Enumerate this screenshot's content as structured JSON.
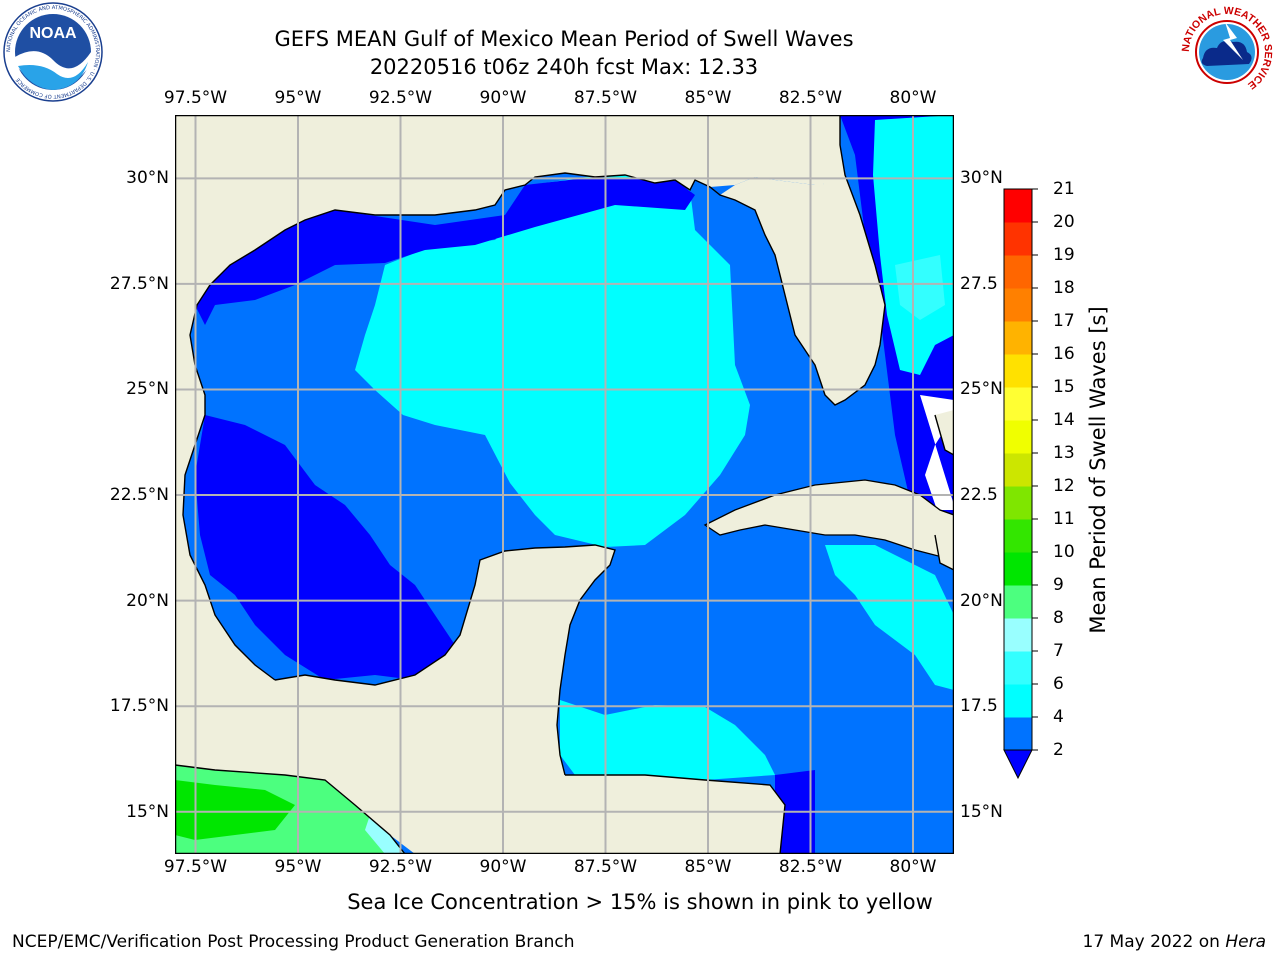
{
  "header": {
    "title_line1": "GEFS MEAN Gulf of Mexico Mean Period of Swell Waves",
    "title_line2": "20220516 t06z 240h fcst   Max: 12.33"
  },
  "logos": {
    "left": {
      "name": "NOAA",
      "text": "NOAA",
      "ring_text": "NATIONAL OCEANIC AND ATMOSPHERIC ADMINISTRATION · U.S. DEPARTMENT OF COMMERCE"
    },
    "right": {
      "name": "National Weather Service",
      "ring_text": "NATIONAL WEATHER SERVICE"
    }
  },
  "map": {
    "lon_range": [
      -98,
      -79
    ],
    "lat_range": [
      14,
      31.5
    ],
    "lon_ticks": [
      {
        "lon": -97.5,
        "label": "97.5°W"
      },
      {
        "lon": -95,
        "label": "95°W"
      },
      {
        "lon": -92.5,
        "label": "92.5°W"
      },
      {
        "lon": -90,
        "label": "90°W"
      },
      {
        "lon": -87.5,
        "label": "87.5°W"
      },
      {
        "lon": -85,
        "label": "85°W"
      },
      {
        "lon": -82.5,
        "label": "82.5°W"
      },
      {
        "lon": -80,
        "label": "80°W"
      }
    ],
    "lat_ticks": [
      {
        "lat": 30,
        "label": "30°N"
      },
      {
        "lat": 27.5,
        "label": "27.5°N"
      },
      {
        "lat": 25,
        "label": "25°N"
      },
      {
        "lat": 22.5,
        "label": "22.5°N"
      },
      {
        "lat": 20,
        "label": "20°N"
      },
      {
        "lat": 17.5,
        "label": "17.5°N"
      },
      {
        "lat": 15,
        "label": "15°N"
      }
    ],
    "right_lat_labels": [
      "30°N",
      "27.5",
      "25°N",
      "22.5",
      "20°N",
      "17.5",
      "15°N"
    ],
    "colors": {
      "land": "#efefdc",
      "gap": "#ffffff",
      "grid": "#b3b3b3",
      "coast": "#000000"
    }
  },
  "colorbar": {
    "label": "Mean Period of Swell Waves [s]",
    "levels": [
      2,
      4,
      6,
      7,
      8,
      9,
      10,
      11,
      12,
      13,
      14,
      15,
      16,
      17,
      18,
      19,
      20,
      21
    ],
    "colors": [
      "#0073ff",
      "#00ffff",
      "#33ffff",
      "#99ffff",
      "#4cff7f",
      "#00e600",
      "#33e600",
      "#7fe600",
      "#cce600",
      "#f0ff00",
      "#ffff33",
      "#ffe100",
      "#ffb300",
      "#ff8000",
      "#ff6600",
      "#ff3300",
      "#ff0000"
    ],
    "under_color": "#0000ff",
    "tick_labels": [
      "2",
      "4",
      "6",
      "7",
      "8",
      "9",
      "10",
      "11",
      "12",
      "13",
      "14",
      "15",
      "16",
      "17",
      "18",
      "19",
      "20",
      "21"
    ]
  },
  "footer": {
    "note": "Sea Ice Concentration > 15% is shown in pink to yellow",
    "credit": "NCEP/EMC/Verification Post Processing Product Generation Branch",
    "date": "17 May 2022 on ",
    "machine": "Hera"
  }
}
